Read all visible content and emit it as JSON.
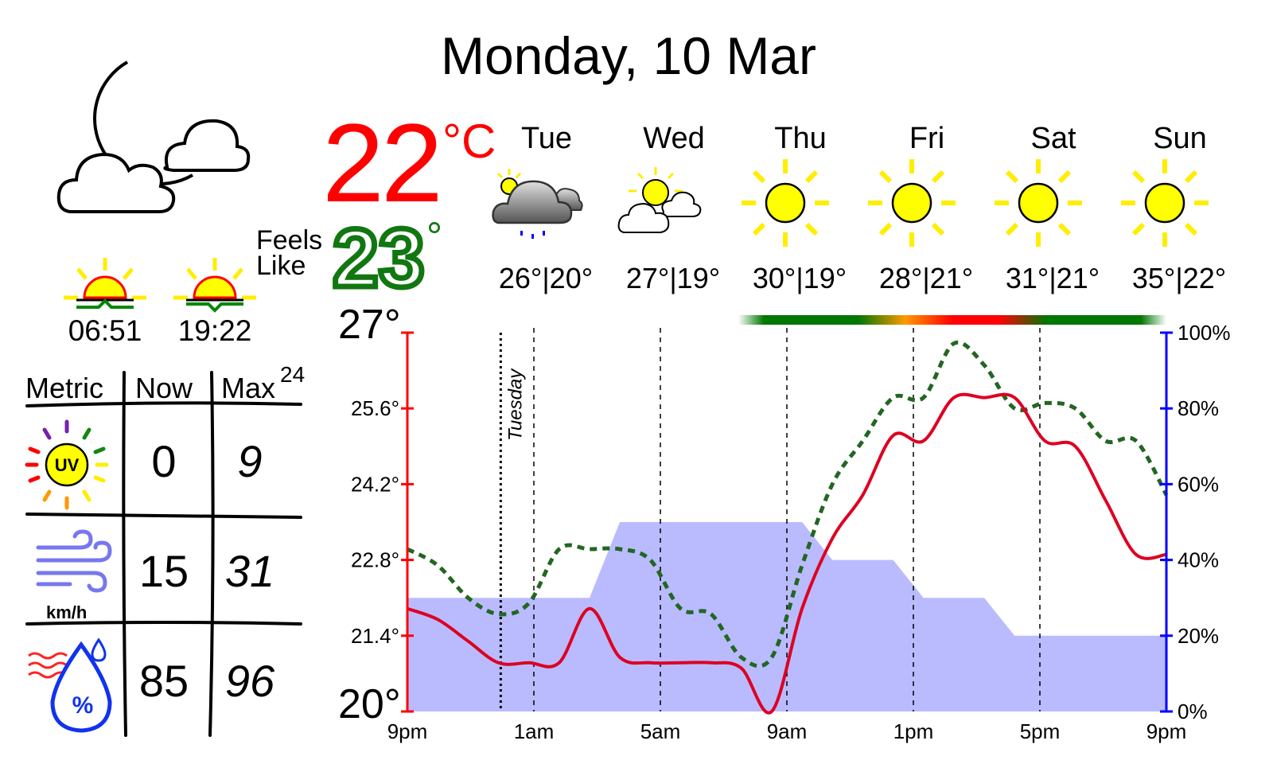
{
  "header": {
    "date": "Monday, 10 Mar"
  },
  "current": {
    "icon": "moon-with-clouds-icon",
    "temperature": "22",
    "unit": "°C",
    "feels_like_label_1": "Feels",
    "feels_like_label_2": "Like",
    "feels_like_value": "23",
    "feels_like_deg": "°",
    "sunrise": "06:51",
    "sunset": "19:22"
  },
  "forecast": [
    {
      "day": "Tue",
      "range": "26°|20°",
      "icon": "sun-with-rain-cloud-icon"
    },
    {
      "day": "Wed",
      "range": "27°|19°",
      "icon": "sun-with-clouds-icon"
    },
    {
      "day": "Thu",
      "range": "30°|19°",
      "icon": "sun-icon"
    },
    {
      "day": "Fri",
      "range": "28°|21°",
      "icon": "sun-icon"
    },
    {
      "day": "Sat",
      "range": "31°|21°",
      "icon": "sun-icon"
    },
    {
      "day": "Sun",
      "range": "35°|22°",
      "icon": "sun-icon"
    }
  ],
  "metrics": {
    "headers": {
      "metric": "Metric",
      "now": "Now",
      "max": "Max",
      "max_sup": "24"
    },
    "rows": [
      {
        "icon": "uv-index-icon",
        "now": "0",
        "max": "9"
      },
      {
        "icon": "wind-icon",
        "unit": "km/h",
        "now": "15",
        "max": "31"
      },
      {
        "icon": "humidity-icon",
        "now": "85",
        "max": "96"
      }
    ]
  },
  "colors": {
    "temp": "#ff0000",
    "feels": "#117711",
    "precip_axis": "#0000ff",
    "precip_fill": "#babbff",
    "moon": "#0000ff",
    "sun": "#ffff00"
  },
  "chart_data": {
    "type": "line",
    "x_labels": [
      "9pm",
      "1am",
      "5am",
      "9am",
      "1pm",
      "5pm",
      "9pm"
    ],
    "day_marker": "Tuesday",
    "left_axis": {
      "min": 20,
      "max": 27,
      "min_label": "20°",
      "max_label": "27°",
      "ticks": [
        "21.4°",
        "22.8°",
        "24.2°",
        "25.6°"
      ]
    },
    "right_axis": {
      "ticks": [
        "0%",
        "20%",
        "40%",
        "60%",
        "80%",
        "100%"
      ]
    },
    "series": [
      {
        "name": "temperature",
        "values": [
          21.9,
          21.7,
          21.3,
          20.9,
          20.9,
          20.9,
          21.9,
          21.0,
          20.9,
          20.9,
          20.9,
          20.8,
          20.0,
          21.9,
          23.2,
          24.0,
          25.1,
          25.0,
          25.8,
          25.8,
          25.8,
          25.0,
          24.9,
          23.9,
          22.9,
          22.9
        ]
      },
      {
        "name": "feels_like",
        "values": [
          23.0,
          22.7,
          22.1,
          21.8,
          22.0,
          23.0,
          23.0,
          23.0,
          22.8,
          21.9,
          21.8,
          21.0,
          21.0,
          22.7,
          24.2,
          25.0,
          25.8,
          25.8,
          26.8,
          26.4,
          25.6,
          25.7,
          25.6,
          25.0,
          25.0,
          24.0
        ]
      },
      {
        "name": "precipitation",
        "step_values": [
          30,
          30,
          30,
          30,
          30,
          30,
          30,
          50,
          50,
          50,
          50,
          50,
          50,
          50,
          40,
          40,
          40,
          30,
          30,
          30,
          20,
          20,
          20,
          20,
          20,
          20
        ]
      }
    ],
    "band_colors": [
      "#007700",
      "#007700",
      "#007700",
      "#ff9900",
      "#ff0000",
      "#ff0000",
      "#007700",
      "#007700",
      "#007700"
    ]
  }
}
